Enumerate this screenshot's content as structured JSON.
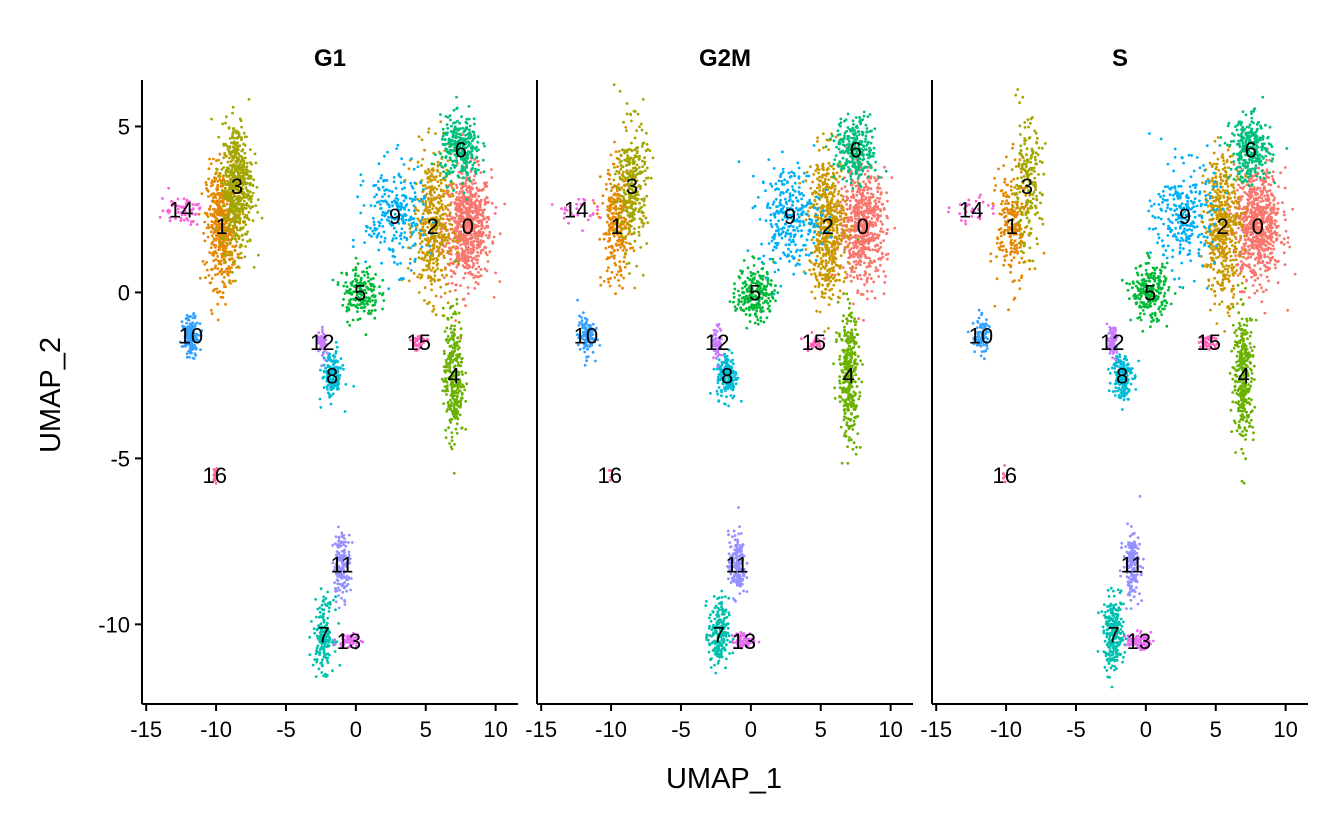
{
  "chart_data": {
    "type": "scatter",
    "xlabel": "UMAP_1",
    "ylabel": "UMAP_2",
    "xlim": [
      -15.3,
      11.6
    ],
    "ylim": [
      -12.4,
      6.4
    ],
    "xticks": [
      -15,
      -10,
      -5,
      0,
      5,
      10
    ],
    "xtick_labels": [
      "-15",
      "-10",
      "-5",
      "0",
      "5",
      "10"
    ],
    "yticks": [
      5,
      0,
      -5,
      -10
    ],
    "ytick_labels": [
      "5",
      "0",
      "-5",
      "-10"
    ],
    "grid": false,
    "legend": "none",
    "facets": [
      "G1",
      "G2M",
      "S"
    ],
    "clusters": [
      {
        "name": "0",
        "color": "#F8766D",
        "x": 8.0,
        "y": 2.0,
        "sx": 1.4,
        "sy": 1.4,
        "n": [
          700,
          600,
          700
        ]
      },
      {
        "name": "1",
        "color": "#E58700",
        "x": -9.6,
        "y": 2.0,
        "sx": 0.9,
        "sy": 1.5,
        "n": [
          500,
          280,
          220
        ]
      },
      {
        "name": "2",
        "color": "#C99800",
        "x": 5.5,
        "y": 2.0,
        "sx": 1.1,
        "sy": 1.8,
        "n": [
          450,
          550,
          500
        ]
      },
      {
        "name": "3",
        "color": "#A3A500",
        "x": -8.5,
        "y": 3.2,
        "sx": 0.9,
        "sy": 1.6,
        "n": [
          550,
          300,
          200
        ]
      },
      {
        "name": "4",
        "color": "#6BB100",
        "x": 7.0,
        "y": -2.5,
        "sx": 0.6,
        "sy": 1.6,
        "n": [
          300,
          350,
          330
        ]
      },
      {
        "name": "5",
        "color": "#00BA38",
        "x": 0.3,
        "y": 0.0,
        "sx": 1.1,
        "sy": 0.7,
        "n": [
          180,
          230,
          250
        ]
      },
      {
        "name": "6",
        "color": "#00BF7D",
        "x": 7.5,
        "y": 4.3,
        "sx": 1.2,
        "sy": 0.8,
        "n": [
          300,
          280,
          300
        ]
      },
      {
        "name": "7",
        "color": "#00C0AF",
        "x": -2.3,
        "y": -10.3,
        "sx": 0.6,
        "sy": 0.9,
        "n": [
          170,
          200,
          250
        ]
      },
      {
        "name": "8",
        "color": "#00BCD8",
        "x": -1.7,
        "y": -2.5,
        "sx": 0.6,
        "sy": 0.6,
        "n": [
          160,
          170,
          180
        ]
      },
      {
        "name": "9",
        "color": "#00B0F6",
        "x": 2.8,
        "y": 2.3,
        "sx": 1.8,
        "sy": 1.3,
        "n": [
          250,
          300,
          280
        ]
      },
      {
        "name": "10",
        "color": "#35A2FF",
        "x": -11.8,
        "y": -1.3,
        "sx": 0.5,
        "sy": 0.5,
        "n": [
          140,
          110,
          80
        ]
      },
      {
        "name": "11",
        "color": "#9590FF",
        "x": -1.0,
        "y": -8.2,
        "sx": 0.5,
        "sy": 0.8,
        "n": [
          160,
          170,
          170
        ]
      },
      {
        "name": "12",
        "color": "#C77CFF",
        "x": -2.4,
        "y": -1.5,
        "sx": 0.3,
        "sy": 0.4,
        "n": [
          50,
          70,
          70
        ]
      },
      {
        "name": "13",
        "color": "#E76BF3",
        "x": -0.5,
        "y": -10.5,
        "sx": 0.7,
        "sy": 0.2,
        "n": [
          60,
          70,
          80
        ]
      },
      {
        "name": "14",
        "color": "#FA62DB",
        "x": -12.5,
        "y": 2.5,
        "sx": 1.2,
        "sy": 0.35,
        "n": [
          60,
          30,
          30
        ]
      },
      {
        "name": "15",
        "color": "#FF62BC",
        "x": 4.5,
        "y": -1.5,
        "sx": 0.5,
        "sy": 0.2,
        "n": [
          30,
          30,
          40
        ]
      },
      {
        "name": "16",
        "color": "#FF6C91",
        "x": -10.1,
        "y": -5.5,
        "sx": 0.12,
        "sy": 0.25,
        "n": [
          15,
          6,
          6
        ]
      }
    ]
  }
}
